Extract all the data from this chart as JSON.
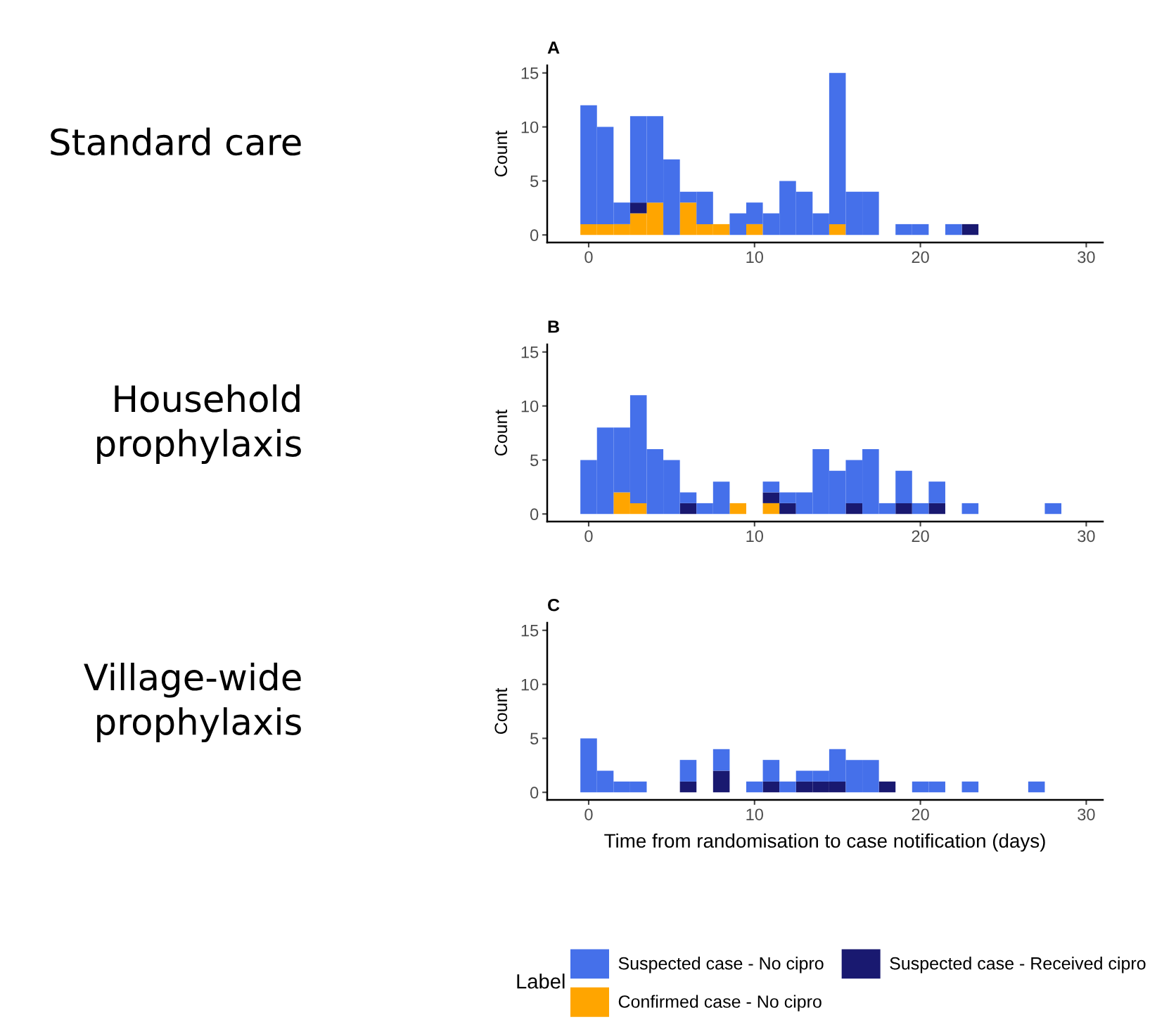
{
  "chart_data": [
    {
      "type": "bar",
      "title": "A",
      "ylabel": "Count",
      "annotations": [
        "Standard care"
      ],
      "stacked": true,
      "grid": false,
      "legend": "bottom",
      "legend_title": "Label",
      "x": [
        0,
        1,
        2,
        3,
        4,
        5,
        6,
        7,
        8,
        9,
        10,
        11,
        12,
        13,
        14,
        15,
        16,
        17,
        18,
        19,
        20,
        21,
        22,
        23,
        24,
        25,
        26,
        27,
        28
      ],
      "xlim": [
        -2.5,
        31
      ],
      "xticks": [
        0,
        10,
        20,
        30
      ],
      "ylim": [
        -0.7,
        15.7
      ],
      "yticks": [
        0,
        5,
        10,
        15
      ],
      "series": [
        {
          "name": "Confirmed case - No cipro",
          "color": "#ffa500",
          "values": [
            1,
            1,
            1,
            2,
            3,
            0,
            3,
            1,
            1,
            0,
            1,
            0,
            0,
            0,
            0,
            1,
            0,
            0,
            0,
            0,
            0,
            0,
            0,
            0,
            0,
            0,
            0,
            0,
            0
          ]
        },
        {
          "name": "Suspected case - Received cipro",
          "color": "#191970",
          "values": [
            0,
            0,
            0,
            1,
            0,
            0,
            0,
            0,
            0,
            0,
            0,
            0,
            0,
            0,
            0,
            0,
            0,
            0,
            0,
            0,
            0,
            0,
            0,
            1,
            0,
            0,
            0,
            0,
            0
          ]
        },
        {
          "name": "Suspected case - No cipro",
          "color": "#4570ea",
          "values": [
            11,
            9,
            2,
            8,
            8,
            7,
            1,
            3,
            0,
            2,
            2,
            2,
            5,
            4,
            2,
            14,
            4,
            4,
            0,
            1,
            1,
            0,
            1,
            0,
            0,
            0,
            0,
            0,
            0
          ]
        }
      ]
    },
    {
      "type": "bar",
      "title": "B",
      "ylabel": "Count",
      "annotations": [
        "Household\nprophylaxis"
      ],
      "stacked": true,
      "grid": false,
      "x": [
        0,
        1,
        2,
        3,
        4,
        5,
        6,
        7,
        8,
        9,
        10,
        11,
        12,
        13,
        14,
        15,
        16,
        17,
        18,
        19,
        20,
        21,
        22,
        23,
        24,
        25,
        26,
        27,
        28
      ],
      "xlim": [
        -2.5,
        31
      ],
      "xticks": [
        0,
        10,
        20,
        30
      ],
      "ylim": [
        -0.7,
        15.7
      ],
      "yticks": [
        0,
        5,
        10,
        15
      ],
      "series": [
        {
          "color": "#ffa500",
          "values": [
            0,
            0,
            2,
            1,
            0,
            0,
            0,
            0,
            0,
            1,
            0,
            1,
            0,
            0,
            0,
            0,
            0,
            0,
            0,
            0,
            0,
            0,
            0,
            0,
            0,
            0,
            0,
            0,
            0
          ]
        },
        {
          "color": "#191970",
          "values": [
            0,
            0,
            0,
            0,
            0,
            0,
            1,
            0,
            0,
            0,
            0,
            1,
            1,
            0,
            0,
            0,
            1,
            0,
            0,
            1,
            0,
            1,
            0,
            0,
            0,
            0,
            0,
            0,
            0
          ]
        },
        {
          "color": "#4570ea",
          "values": [
            5,
            8,
            6,
            10,
            6,
            5,
            1,
            1,
            3,
            0,
            0,
            1,
            1,
            2,
            6,
            4,
            4,
            6,
            1,
            3,
            1,
            2,
            0,
            1,
            0,
            0,
            0,
            0,
            1
          ]
        }
      ]
    },
    {
      "type": "bar",
      "title": "C",
      "ylabel": "Count",
      "xlabel": "Time from randomisation to case notification (days)",
      "annotations": [
        "Village-wide\nprophylaxis"
      ],
      "stacked": true,
      "grid": false,
      "x": [
        0,
        1,
        2,
        3,
        4,
        5,
        6,
        7,
        8,
        9,
        10,
        11,
        12,
        13,
        14,
        15,
        16,
        17,
        18,
        19,
        20,
        21,
        22,
        23,
        24,
        25,
        26,
        27,
        28
      ],
      "xlim": [
        -2.5,
        31
      ],
      "xticks": [
        0,
        10,
        20,
        30
      ],
      "ylim": [
        -0.7,
        15.7
      ],
      "yticks": [
        0,
        5,
        10,
        15
      ],
      "series": [
        {
          "color": "#191970",
          "values": [
            0,
            0,
            0,
            0,
            0,
            0,
            1,
            0,
            2,
            0,
            0,
            1,
            0,
            1,
            1,
            1,
            0,
            0,
            1,
            0,
            0,
            0,
            0,
            0,
            0,
            0,
            0,
            0,
            0
          ]
        },
        {
          "color": "#4570ea",
          "values": [
            5,
            2,
            1,
            1,
            0,
            0,
            2,
            0,
            2,
            0,
            1,
            2,
            1,
            1,
            1,
            3,
            3,
            3,
            0,
            0,
            1,
            1,
            0,
            1,
            0,
            0,
            0,
            1,
            0
          ]
        }
      ]
    }
  ]
}
